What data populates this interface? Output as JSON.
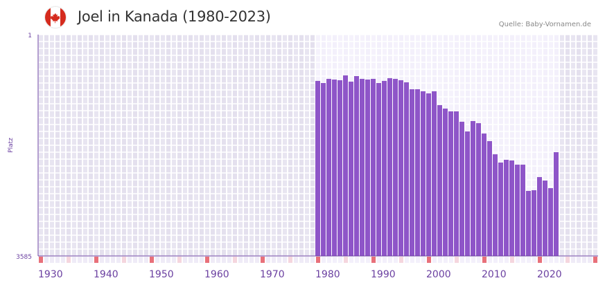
{
  "header": {
    "title": "Joel in Kanada (1980-2023)",
    "source": "Quelle: Baby-Vornamen.de",
    "flag_icon": "canada-flag-icon"
  },
  "colors": {
    "bar": "#8e55c8",
    "bg_outside": "#e4e0ee",
    "bg_inside": "#f3f0fb",
    "axis": "#6a3fa0",
    "decade": "#e8707a",
    "half": "#f5d6de"
  },
  "chart_data": {
    "type": "bar",
    "title": "Joel in Kanada (1980-2023)",
    "ylabel": "Platz",
    "xlabel": "",
    "xlim": [
      1930,
      2030
    ],
    "ylim": [
      3585,
      1
    ],
    "y_inverted": true,
    "ytick_labels": [
      "1",
      "3585"
    ],
    "xtick_labels": [
      "1930",
      "1940",
      "1950",
      "1960",
      "1970",
      "1980",
      "1990",
      "2000",
      "2010",
      "2020"
    ],
    "xticks": [
      1930,
      1940,
      1950,
      1960,
      1970,
      1980,
      1990,
      2000,
      2010,
      2020
    ],
    "grid": true,
    "x": [
      1980,
      1981,
      1982,
      1983,
      1984,
      1985,
      1986,
      1987,
      1988,
      1989,
      1990,
      1991,
      1992,
      1993,
      1994,
      1995,
      1996,
      1997,
      1998,
      1999,
      2000,
      2001,
      2002,
      2003,
      2004,
      2005,
      2006,
      2007,
      2008,
      2009,
      2010,
      2011,
      2012,
      2013,
      2014,
      2015,
      2016,
      2017,
      2018,
      2019,
      2020,
      2021,
      2022,
      2023
    ],
    "values": [
      751,
      785,
      718,
      729,
      740,
      662,
      763,
      673,
      718,
      729,
      718,
      785,
      751,
      707,
      718,
      740,
      774,
      886,
      886,
      919,
      953,
      919,
      1143,
      1199,
      1244,
      1244,
      1412,
      1569,
      1401,
      1435,
      1603,
      1726,
      1939,
      2073,
      2028,
      2039,
      2107,
      2107,
      2532,
      2521,
      2308,
      2364,
      2487,
      1905
    ]
  }
}
